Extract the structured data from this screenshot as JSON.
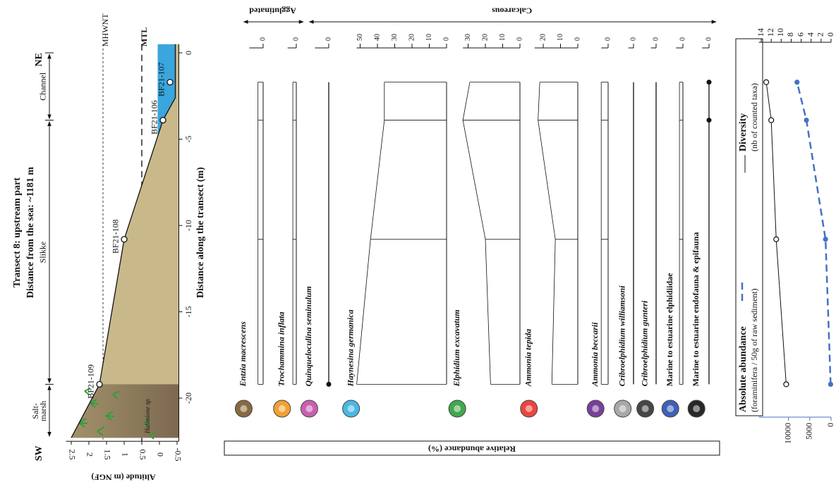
{
  "chart_data": [
    {
      "type": "transect",
      "title": "Transect 8: upstream part",
      "subtitle": "Distance from the sea:  ~1181 m",
      "x_label": "Distance along the transect (m)",
      "y_label": "Altitude (m NGF)",
      "xlim": [
        -22.5,
        0.5
      ],
      "xticks": [
        -20,
        -15,
        -10,
        -5,
        0
      ],
      "ylim": [
        -0.55,
        2.65
      ],
      "yticks": [
        2.5,
        2,
        1.5,
        1,
        0.5,
        0,
        -0.5
      ],
      "x": [
        -22.3,
        -19.2,
        -10.8,
        -3.9,
        -2.6,
        0.5
      ],
      "values": [
        2.5,
        1.7,
        1.0,
        -0.1,
        -0.45,
        -0.45
      ],
      "color": "#c9b98a",
      "water_level": 0.05,
      "water_color": "#3aa6dd",
      "samples": [
        {
          "name": "BF21-109",
          "distance": -19.2,
          "altitude": 1.7
        },
        {
          "name": "BF21-108",
          "distance": -10.8,
          "altitude": 1.0
        },
        {
          "name": "BF21-106",
          "distance": -3.9,
          "altitude": -0.1
        },
        {
          "name": "BF21-107",
          "distance": -1.7,
          "altitude": -0.3
        }
      ],
      "reference_lines": [
        {
          "label": "MHWNT",
          "value": 1.6
        },
        {
          "label": "MTL",
          "value": 0.5
        }
      ],
      "ends": [
        "SW",
        "NE"
      ],
      "zones": [
        {
          "label": [
            "Salt-",
            "marsh"
          ],
          "from": -22.3,
          "to": -19.2
        },
        {
          "label": [
            "Slikke"
          ],
          "from": -19.2,
          "to": -3.9
        },
        {
          "label": [
            "Channel"
          ],
          "from": -3.9,
          "to": 0
        }
      ],
      "annotation": "Halimione sp."
    },
    {
      "type": "strat",
      "x_label": "Relative abundance (%)",
      "groups": [
        {
          "label": "Agglutinated",
          "series": [
            {
              "name": "Entzia macrescens",
              "color": "#7b5a2e",
              "italic": true,
              "values": [
                3,
                3,
                3,
                3
              ],
              "xlim": [
                0,
                8
              ],
              "xticks": [
                0
              ]
            },
            {
              "name": "Trochammina inflata",
              "color": "#f0961e",
              "italic": true,
              "values": [
                2,
                2,
                2,
                2
              ],
              "xlim": [
                0,
                5
              ],
              "xticks": [
                0
              ]
            }
          ]
        },
        {
          "label": "Calcareous",
          "series": [
            {
              "name": "Quinqueloculina seminulum",
              "color": "#c44fa8",
              "italic": true,
              "values": [
                0.5,
                0,
                0,
                0
              ],
              "xlim": [
                0,
                8
              ],
              "xticks": [
                0
              ]
            },
            {
              "name": "Haynesina germanica",
              "color": "#38b0e3",
              "italic": true,
              "values": [
                52,
                44,
                36,
                36
              ],
              "xlim": [
                0,
                52
              ],
              "xticks": [
                0,
                10,
                20,
                30,
                40,
                50
              ]
            },
            {
              "name": "Elphidium excavatum",
              "color": "#2e9e3a",
              "italic": true,
              "values": [
                17,
                20,
                33,
                29
              ],
              "xlim": [
                0,
                33
              ],
              "xticks": [
                0,
                10,
                20,
                30
              ]
            },
            {
              "name": "Ammonia tepida",
              "color": "#e8322b",
              "italic": true,
              "values": [
                15,
                13,
                23,
                22
              ],
              "xlim": [
                0,
                25
              ],
              "xticks": [
                0,
                10,
                20
              ]
            },
            {
              "name": "Ammonia beccarii",
              "color": "#6a2c91",
              "italic": true,
              "values": [
                4,
                4,
                4,
                4
              ],
              "xlim": [
                0,
                4
              ],
              "xticks": [
                0
              ]
            },
            {
              "name": "Cribroelphidium williamsoni",
              "color": "#a0a0a0",
              "italic": true,
              "values": [
                0,
                0,
                0,
                0
              ],
              "xlim": [
                0,
                3
              ],
              "xticks": [
                0
              ]
            },
            {
              "name": "Cribroelphidium gunteri",
              "color": "#333333",
              "italic": true,
              "values": [
                0,
                0,
                0,
                0
              ],
              "xlim": [
                0,
                3
              ],
              "xticks": [
                0
              ]
            },
            {
              "name": "Marine to estuarine elphidiidae",
              "color": "#2a4fb0",
              "italic": false,
              "values": [
                2,
                2,
                2,
                2
              ],
              "xlim": [
                0,
                4
              ],
              "xticks": [
                0
              ]
            },
            {
              "name": "Marine to estuarine endofauna & epifauna",
              "color": "#111111",
              "italic": false,
              "values": [
                0,
                0,
                0.5,
                0.5
              ],
              "xlim": [
                0,
                4
              ],
              "xticks": [
                0
              ]
            }
          ]
        }
      ]
    },
    {
      "type": "line",
      "ylim": [
        0,
        14.5
      ],
      "yticks": [
        14,
        12,
        10,
        8,
        6,
        4,
        2,
        0
      ],
      "y2lim": [
        0,
        17000
      ],
      "y2ticks": [
        10000,
        5000,
        0
      ],
      "series": [
        {
          "name": "Diversity",
          "unit": "(nb of counted taxa)",
          "color": "#111111",
          "values": [
            9,
            11,
            12,
            13
          ]
        },
        {
          "name": "Absolute abundance",
          "unit": "(foraminifera / 50g of raw sediment)",
          "color": "#4472c4",
          "axis": "y2",
          "dashed": true,
          "values": [
            100,
            1300,
            5800,
            8000
          ]
        }
      ]
    }
  ]
}
